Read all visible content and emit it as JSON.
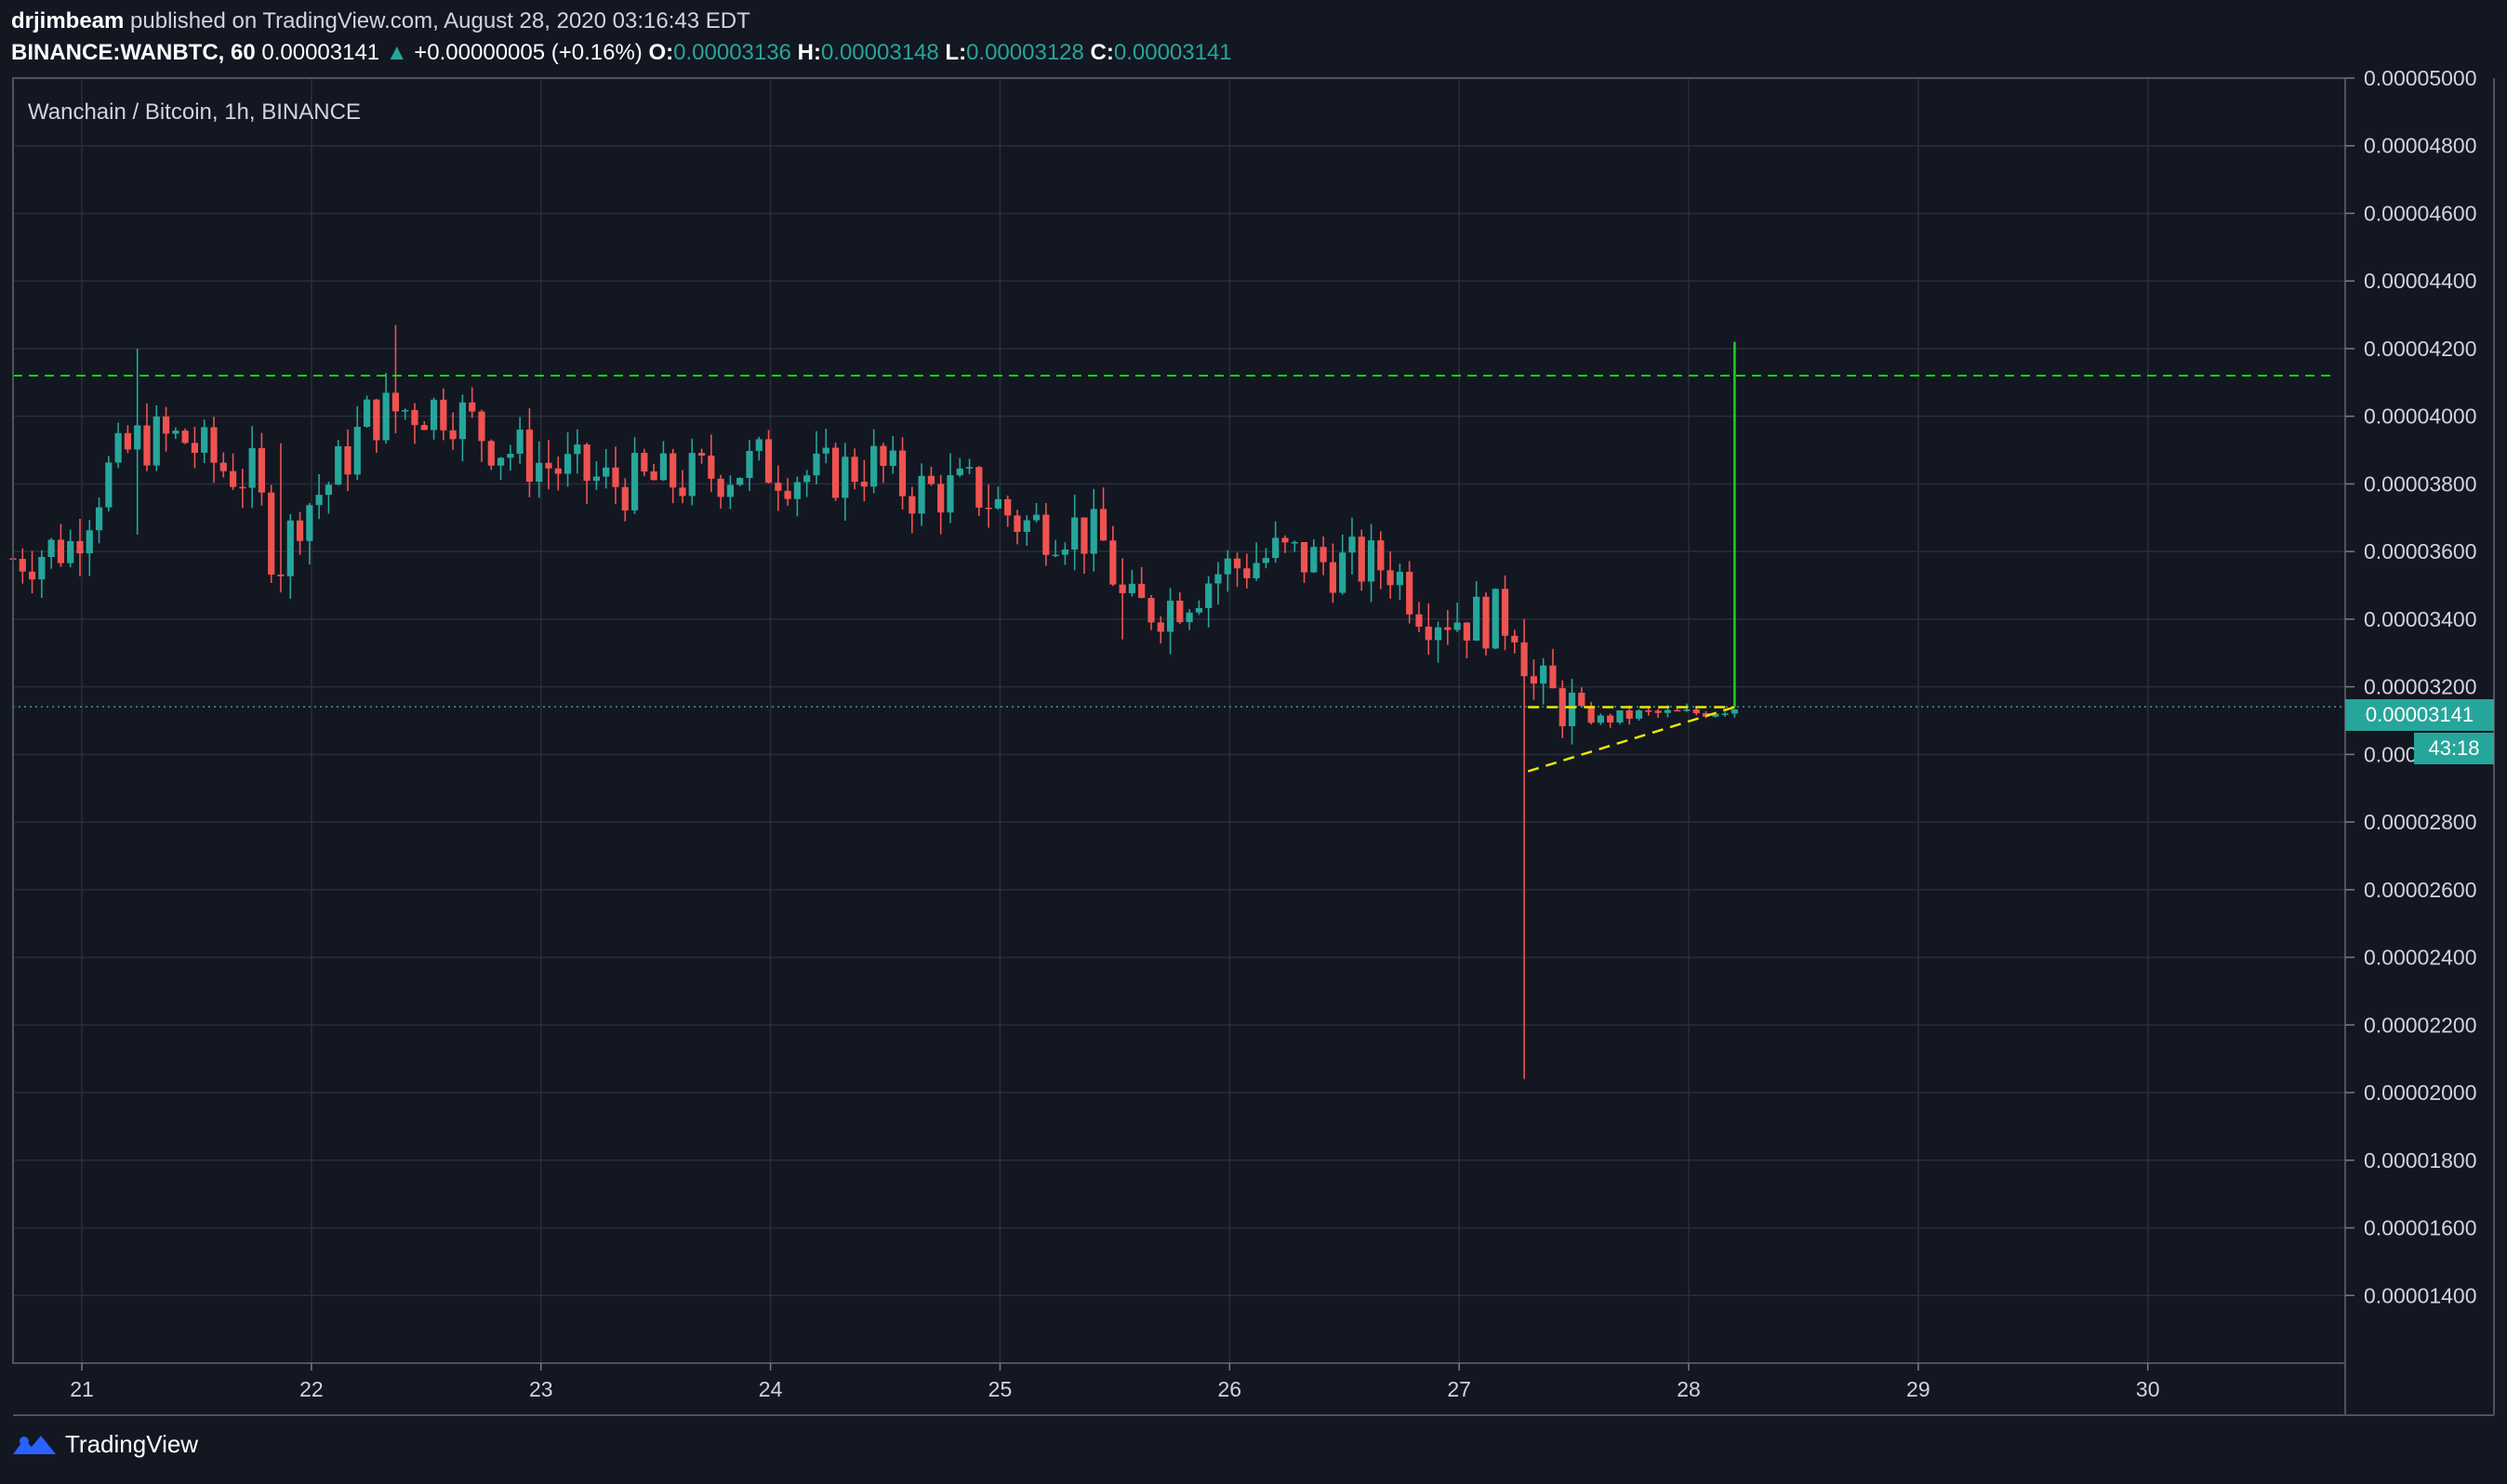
{
  "header": {
    "author": "drjimbeam",
    "published_text": "published on TradingView.com, August 28, 2020 03:16:43 EDT",
    "symbol": "BINANCE:WANBTC, 60",
    "last": "0.00003141",
    "change_arrow": "▲",
    "change": "+0.00000005 (+0.16%)",
    "o_label": "O:",
    "o_value": "0.00003136",
    "h_label": "H:",
    "h_value": "0.00003148",
    "l_label": "L:",
    "l_value": "0.00003128",
    "c_label": "C:",
    "c_value": "0.00003141"
  },
  "legend": {
    "title": "Wanchain / Bitcoin, 1h, BINANCE"
  },
  "price_tag": {
    "value": "0.00003141",
    "countdown": "43:18"
  },
  "footer": {
    "brand": "TradingView"
  },
  "colors": {
    "background": "#131722",
    "grid": "#2a2e39",
    "up": "#26a69a",
    "down": "#ef5350",
    "resistance_line": "#00e000",
    "triangle_lines": "#e8e800",
    "projection_line": "#22d022",
    "price_line": "#26a69a"
  },
  "chart_data": {
    "type": "candlestick",
    "title": "Wanchain / Bitcoin, 1h, BINANCE",
    "x_tick_labels": [
      "21",
      "22",
      "23",
      "24",
      "25",
      "26",
      "27",
      "28",
      "29",
      "30"
    ],
    "x_ticks": [
      21,
      22,
      23,
      24,
      25,
      26,
      27,
      28,
      29,
      30
    ],
    "x_range": [
      20.7,
      30.86
    ],
    "y_range": [
      1.2e-05,
      5e-05
    ],
    "y_tick_labels": [
      "0.00005000",
      "0.00004800",
      "0.00004600",
      "0.00004400",
      "0.00004200",
      "0.00004000",
      "0.00003800",
      "0.00003600",
      "0.00003400",
      "0.00003200",
      "0.00003000",
      "0.00002800",
      "0.00002600",
      "0.00002400",
      "0.00002200",
      "0.00002000",
      "0.00001800",
      "0.00001600",
      "0.00001400"
    ],
    "y_ticks": [
      5e-05,
      4.8e-05,
      4.6e-05,
      4.4e-05,
      4.2e-05,
      4e-05,
      3.8e-05,
      3.6e-05,
      3.4e-05,
      3.2e-05,
      3e-05,
      2.8e-05,
      2.6e-05,
      2.4e-05,
      2.2e-05,
      2e-05,
      1.8e-05,
      1.6e-05,
      1.4e-05
    ],
    "last_price": 3.141e-05,
    "annotations": {
      "resistance": 4.12e-05,
      "triangle": {
        "upper": [
          [
            27.3,
            3.14e-05
          ],
          [
            28.2,
            3.14e-05
          ]
        ],
        "lower": [
          [
            27.3,
            2.95e-05
          ],
          [
            28.2,
            3.14e-05
          ]
        ]
      },
      "projection": [
        [
          28.2,
          3.14e-05
        ],
        [
          28.2,
          4.22e-05
        ]
      ]
    },
    "candles_hint": "hourly OHLC candles from Aug 20 to Aug 28 2020",
    "waypoints": [
      [
        20.7,
        3.58e-05
      ],
      [
        20.95,
        3.62e-05
      ],
      [
        21.1,
        3.82e-05
      ],
      [
        21.25,
        3.93e-05
      ],
      [
        21.45,
        3.93e-05
      ],
      [
        21.6,
        3.85e-05
      ],
      [
        21.75,
        3.82e-05
      ],
      [
        21.85,
        3.55e-05
      ],
      [
        21.95,
        3.72e-05
      ],
      [
        22.1,
        3.82e-05
      ],
      [
        22.25,
        4e-05
      ],
      [
        22.4,
        4.02e-05
      ],
      [
        22.6,
        4.03e-05
      ],
      [
        22.8,
        3.92e-05
      ],
      [
        23.0,
        3.86e-05
      ],
      [
        23.3,
        3.8e-05
      ],
      [
        23.6,
        3.81e-05
      ],
      [
        23.95,
        3.86e-05
      ],
      [
        24.2,
        3.82e-05
      ],
      [
        24.45,
        3.86e-05
      ],
      [
        24.6,
        3.78e-05
      ],
      [
        24.9,
        3.78e-05
      ],
      [
        25.1,
        3.68e-05
      ],
      [
        25.3,
        3.68e-05
      ],
      [
        25.45,
        3.62e-05
      ],
      [
        25.55,
        3.42e-05
      ],
      [
        25.75,
        3.45e-05
      ],
      [
        25.95,
        3.54e-05
      ],
      [
        26.2,
        3.59e-05
      ],
      [
        26.5,
        3.56e-05
      ],
      [
        26.7,
        3.56e-05
      ],
      [
        26.85,
        3.43e-05
      ],
      [
        27.05,
        3.4e-05
      ],
      [
        27.25,
        3.4e-05
      ],
      [
        27.32,
        3.2e-05
      ],
      [
        27.45,
        3.15e-05
      ],
      [
        27.6,
        3.1e-05
      ],
      [
        27.8,
        3.12e-05
      ],
      [
        28.0,
        3.12e-05
      ],
      [
        28.2,
        3.14e-05
      ]
    ],
    "spikes": [
      [
        21.25,
        4.2e-05,
        3.65e-05
      ],
      [
        22.37,
        4.27e-05,
        3.95e-05
      ],
      [
        21.85,
        3.92e-05,
        3.5e-05
      ],
      [
        27.28,
        3.4e-05,
        2.04e-05
      ],
      [
        25.55,
        3.58e-05,
        3.34e-05
      ]
    ]
  }
}
